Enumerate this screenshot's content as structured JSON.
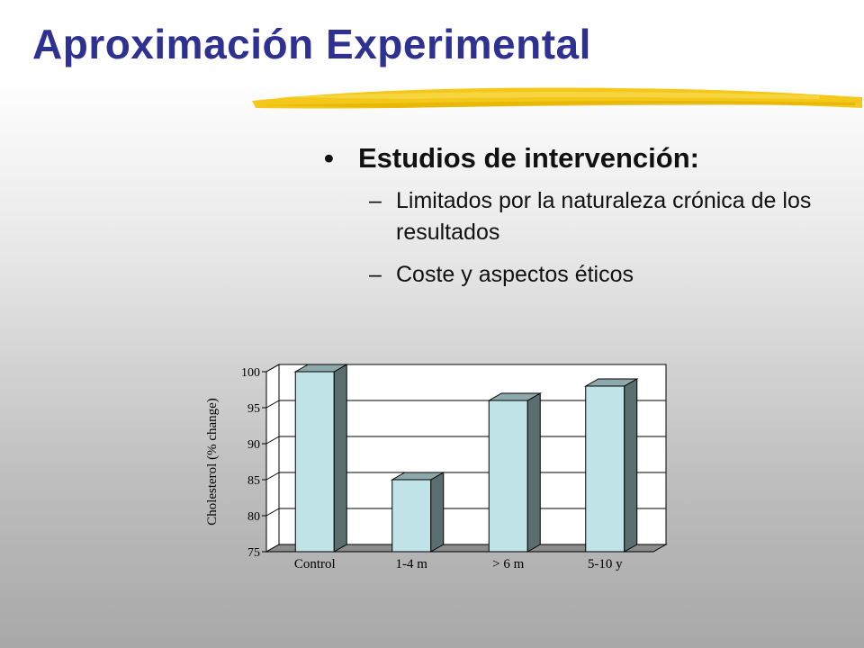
{
  "slide": {
    "title": "Aproximación Experimental",
    "bullet_main": "Estudios de intervención:",
    "bullet_symbol": "•",
    "sub_symbol": "–",
    "sub_items": [
      "Limitados por la naturaleza crónica de los resultados",
      "Coste y aspectos éticos"
    ]
  },
  "colors": {
    "title": "#2e3192",
    "accent_stroke": "#f2c200",
    "bar_front": "#bfe3e6",
    "bar_side": "#5a6e70",
    "bar_top": "#8fa8aa",
    "floor": "#8c8c8c"
  },
  "chart_data": {
    "type": "bar",
    "style": "3d",
    "categories": [
      "Control",
      "1-4 m",
      "> 6 m",
      "5-10 y"
    ],
    "values": [
      100,
      85,
      96,
      98
    ],
    "ylabel": "Cholesterol (% change)",
    "xlabel": "",
    "ylim": [
      75,
      100
    ],
    "yticks": [
      75,
      80,
      85,
      90,
      95,
      100
    ],
    "grid": true,
    "legend": "none"
  }
}
